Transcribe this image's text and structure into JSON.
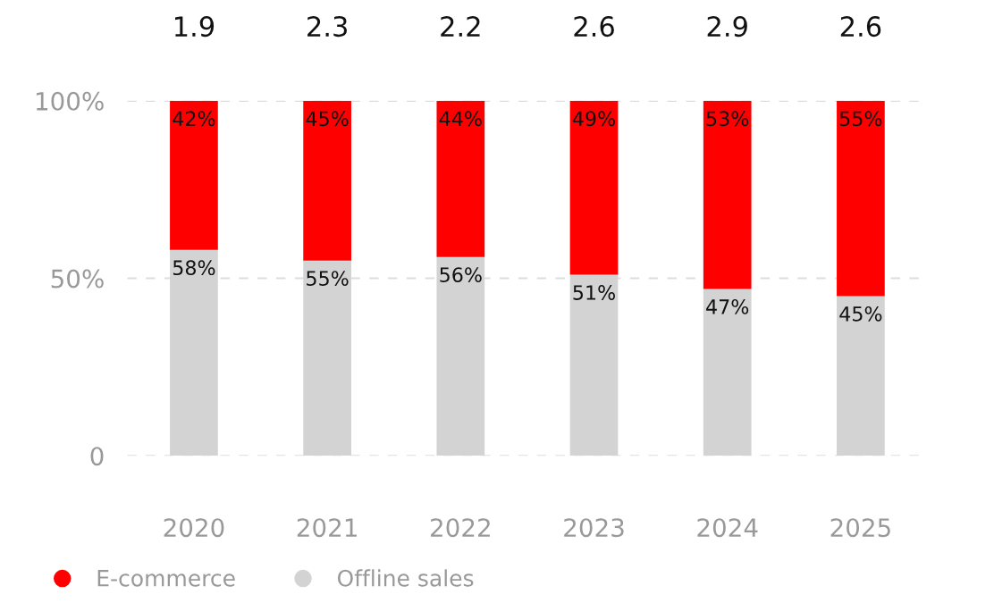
{
  "chart_data": {
    "type": "bar",
    "stacked": true,
    "categories": [
      "2020",
      "2021",
      "2022",
      "2023",
      "2024",
      "2025"
    ],
    "series": [
      {
        "name": "Offline sales",
        "color": "#d3d3d3",
        "values": [
          58,
          55,
          56,
          51,
          47,
          45
        ],
        "value_labels": [
          "58%",
          "55%",
          "56%",
          "51%",
          "47%",
          "45%"
        ]
      },
      {
        "name": "E-commerce",
        "color": "#ff0000",
        "values": [
          42,
          45,
          44,
          49,
          53,
          55
        ],
        "value_labels": [
          "42%",
          "45%",
          "44%",
          "49%",
          "53%",
          "55%"
        ]
      }
    ],
    "annotations": [
      "1.9",
      "2.3",
      "2.2",
      "2.6",
      "2.9",
      "2.6"
    ],
    "ylim": [
      0,
      100
    ],
    "yticks": [
      0,
      {
        "value": 50,
        "label": "50%"
      },
      {
        "value": 100,
        "label": "100%"
      }
    ],
    "grid": "y",
    "legend": "bottom left"
  }
}
